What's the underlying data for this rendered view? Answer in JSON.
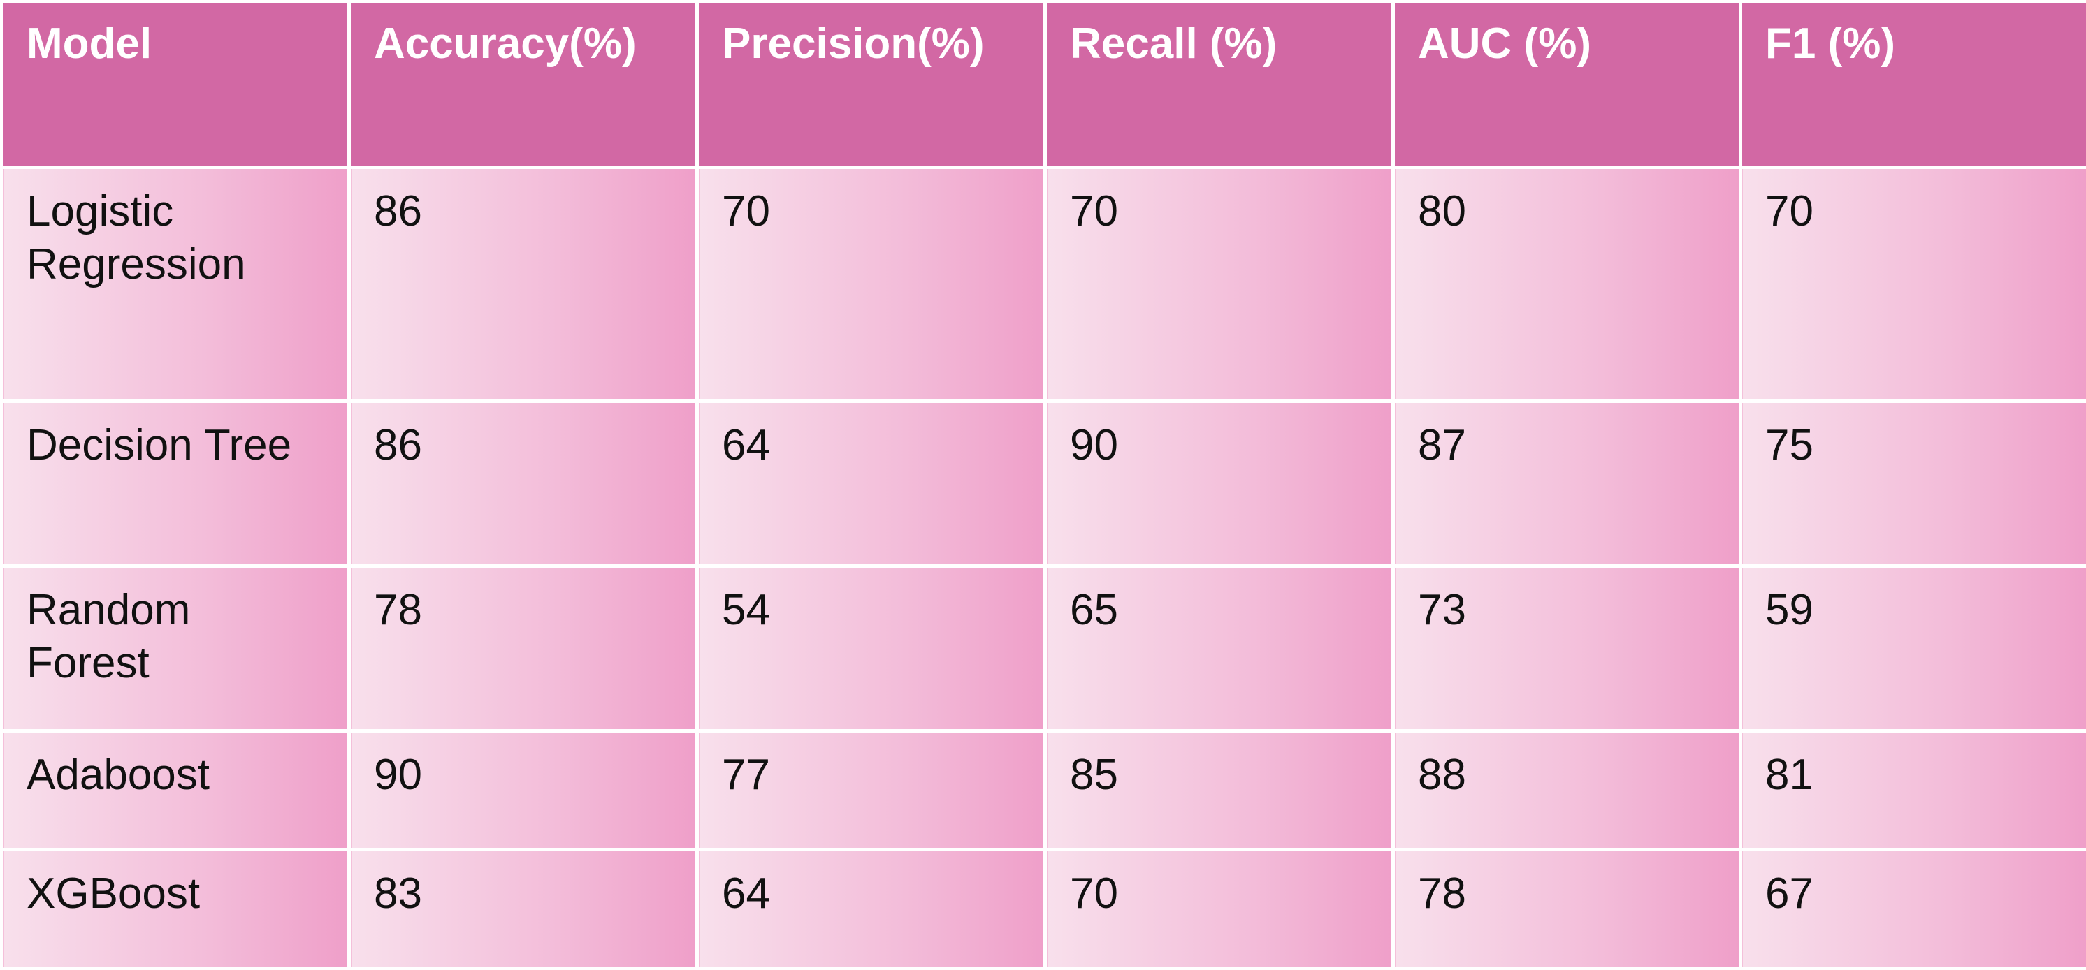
{
  "table": {
    "headers": [
      "Model",
      "Accuracy(%)",
      "Precision(%)",
      "Recall (%)",
      "AUC (%)",
      "F1 (%)"
    ],
    "rows": [
      [
        "Logistic Regression",
        "86",
        "70",
        "70",
        "80",
        "70"
      ],
      [
        "Decision Tree",
        "86",
        "64",
        "90",
        "87",
        "75"
      ],
      [
        "Random Forest",
        "78",
        "54",
        "65",
        "73",
        "59"
      ],
      [
        "Adaboost",
        "90",
        "77",
        "85",
        "88",
        "81"
      ],
      [
        "XGBoost",
        "83",
        "64",
        "70",
        "78",
        "67"
      ]
    ]
  },
  "colors": {
    "header_background": "#d268a4",
    "header_text": "#ffffff",
    "cell_gradient_light": "#f8e0ec",
    "cell_gradient_dark": "#ef9fc9",
    "cell_text": "#111111",
    "border": "#ffffff"
  }
}
